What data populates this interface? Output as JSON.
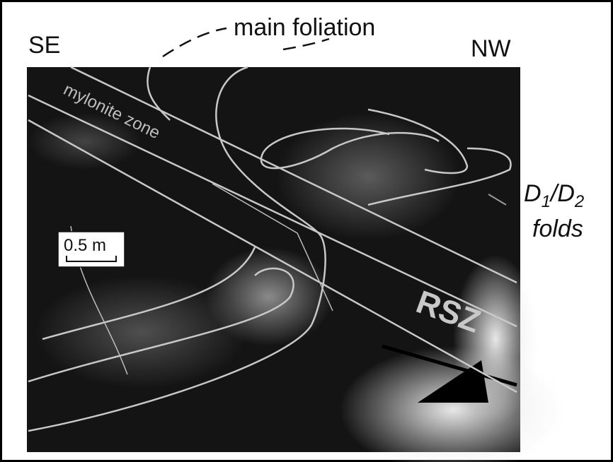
{
  "labels": {
    "main_foliation": "main foliation",
    "se": "SE",
    "nw": "NW",
    "mylonite_zone": "mylonite zone",
    "scale_bar": "0.5 m",
    "rsz": "RSZ",
    "folds": {
      "d1": "D",
      "sub1": "1",
      "d2": "/D",
      "sub2": "2",
      "caption": "folds"
    }
  }
}
